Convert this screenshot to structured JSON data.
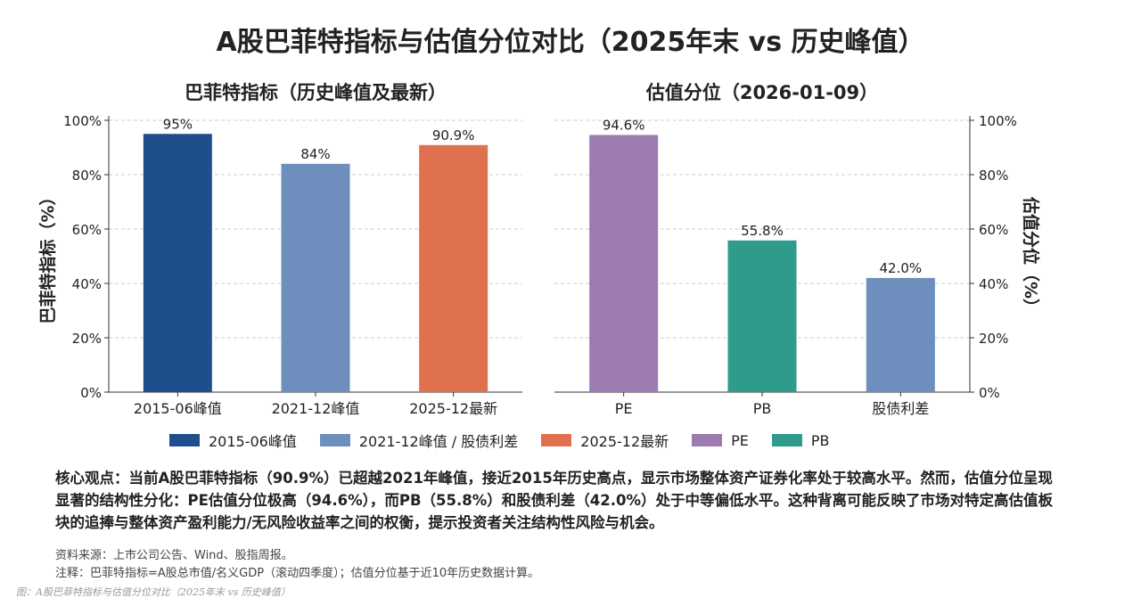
{
  "title": "A股巴菲特指标与估值分位对比（2025年末 vs 历史峰值）",
  "chart_data": [
    {
      "type": "bar",
      "title": "巴菲特指标（历史峰值及最新）",
      "ylabel": "巴菲特指标（%）",
      "ylim": [
        0,
        100
      ],
      "yticks": [
        "0%",
        "20%",
        "40%",
        "60%",
        "80%",
        "100%"
      ],
      "categories": [
        "2015-06峰值",
        "2021-12峰值",
        "2025-12最新"
      ],
      "values": [
        95,
        84,
        90.9
      ],
      "labels": [
        "95%",
        "84%",
        "90.9%"
      ],
      "colors": [
        "#1f4e8c",
        "#6e8fbd",
        "#e0714f"
      ],
      "grid": true,
      "yaxis_side": "left"
    },
    {
      "type": "bar",
      "title": "估值分位（2026-01-09）",
      "ylabel": "估值分位（%）",
      "ylim": [
        0,
        100
      ],
      "yticks": [
        "0%",
        "20%",
        "40%",
        "60%",
        "80%",
        "100%"
      ],
      "categories": [
        "PE",
        "PB",
        "股债利差"
      ],
      "values": [
        94.6,
        55.8,
        42.0
      ],
      "labels": [
        "94.6%",
        "55.8%",
        "42.0%"
      ],
      "colors": [
        "#9b7bb0",
        "#2f9b8a",
        "#6e8fbd"
      ],
      "grid": true,
      "yaxis_side": "right"
    }
  ],
  "legend": [
    {
      "label": "2015-06峰值",
      "color": "#1f4e8c"
    },
    {
      "label": "2021-12峰值 / 股债利差",
      "color": "#6e8fbd"
    },
    {
      "label": "2025-12最新",
      "color": "#e0714f"
    },
    {
      "label": "PE",
      "color": "#9b7bb0"
    },
    {
      "label": "PB",
      "color": "#2f9b8a"
    }
  ],
  "core": "核心观点：当前A股巴菲特指标（90.9%）已超越2021年峰值，接近2015年历史高点，显示市场整体资产证券化率处于较高水平。然而，估值分位呈现显著的结构性分化：PE估值分位极高（94.6%），而PB（55.8%）和股债利差（42.0%）处于中等偏低水平。这种背离可能反映了市场对特定高估值板块的追捧与整体资产盈利能力/无风险收益率之间的权衡，提示投资者关注结构性风险与机会。",
  "source": "资料来源：上市公司公告、Wind、股指周报。",
  "note": "注释：巴菲特指标=A股总市值/名义GDP（滚动四季度）；估值分位基于近10年历史数据计算。",
  "caption": "图：A股巴菲特指标与估值分位对比（2025年末 vs 历史峰值）"
}
